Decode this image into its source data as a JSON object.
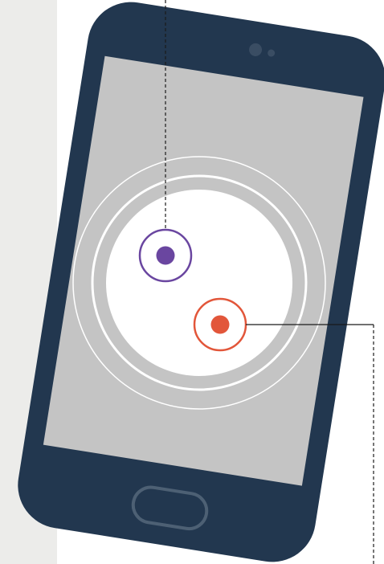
{
  "diagram": {
    "type": "tilted-phone-touch-illustration",
    "colors": {
      "side_panel": "#ececea",
      "phone_body": "#22374f",
      "screen": "#c4c4c4",
      "circle_fill": "#ffffff",
      "ring_outline": "#ffffff",
      "leader_line": "#1a1a1a",
      "home_button_outline": "#4d6074",
      "camera": "#3a4d63"
    },
    "touch_points": [
      {
        "id": "point-purple",
        "color": "#6a46a0"
      },
      {
        "id": "point-orange",
        "color": "#e2563a"
      }
    ],
    "icons": [
      "camera-lens-icon",
      "home-button-icon"
    ]
  }
}
